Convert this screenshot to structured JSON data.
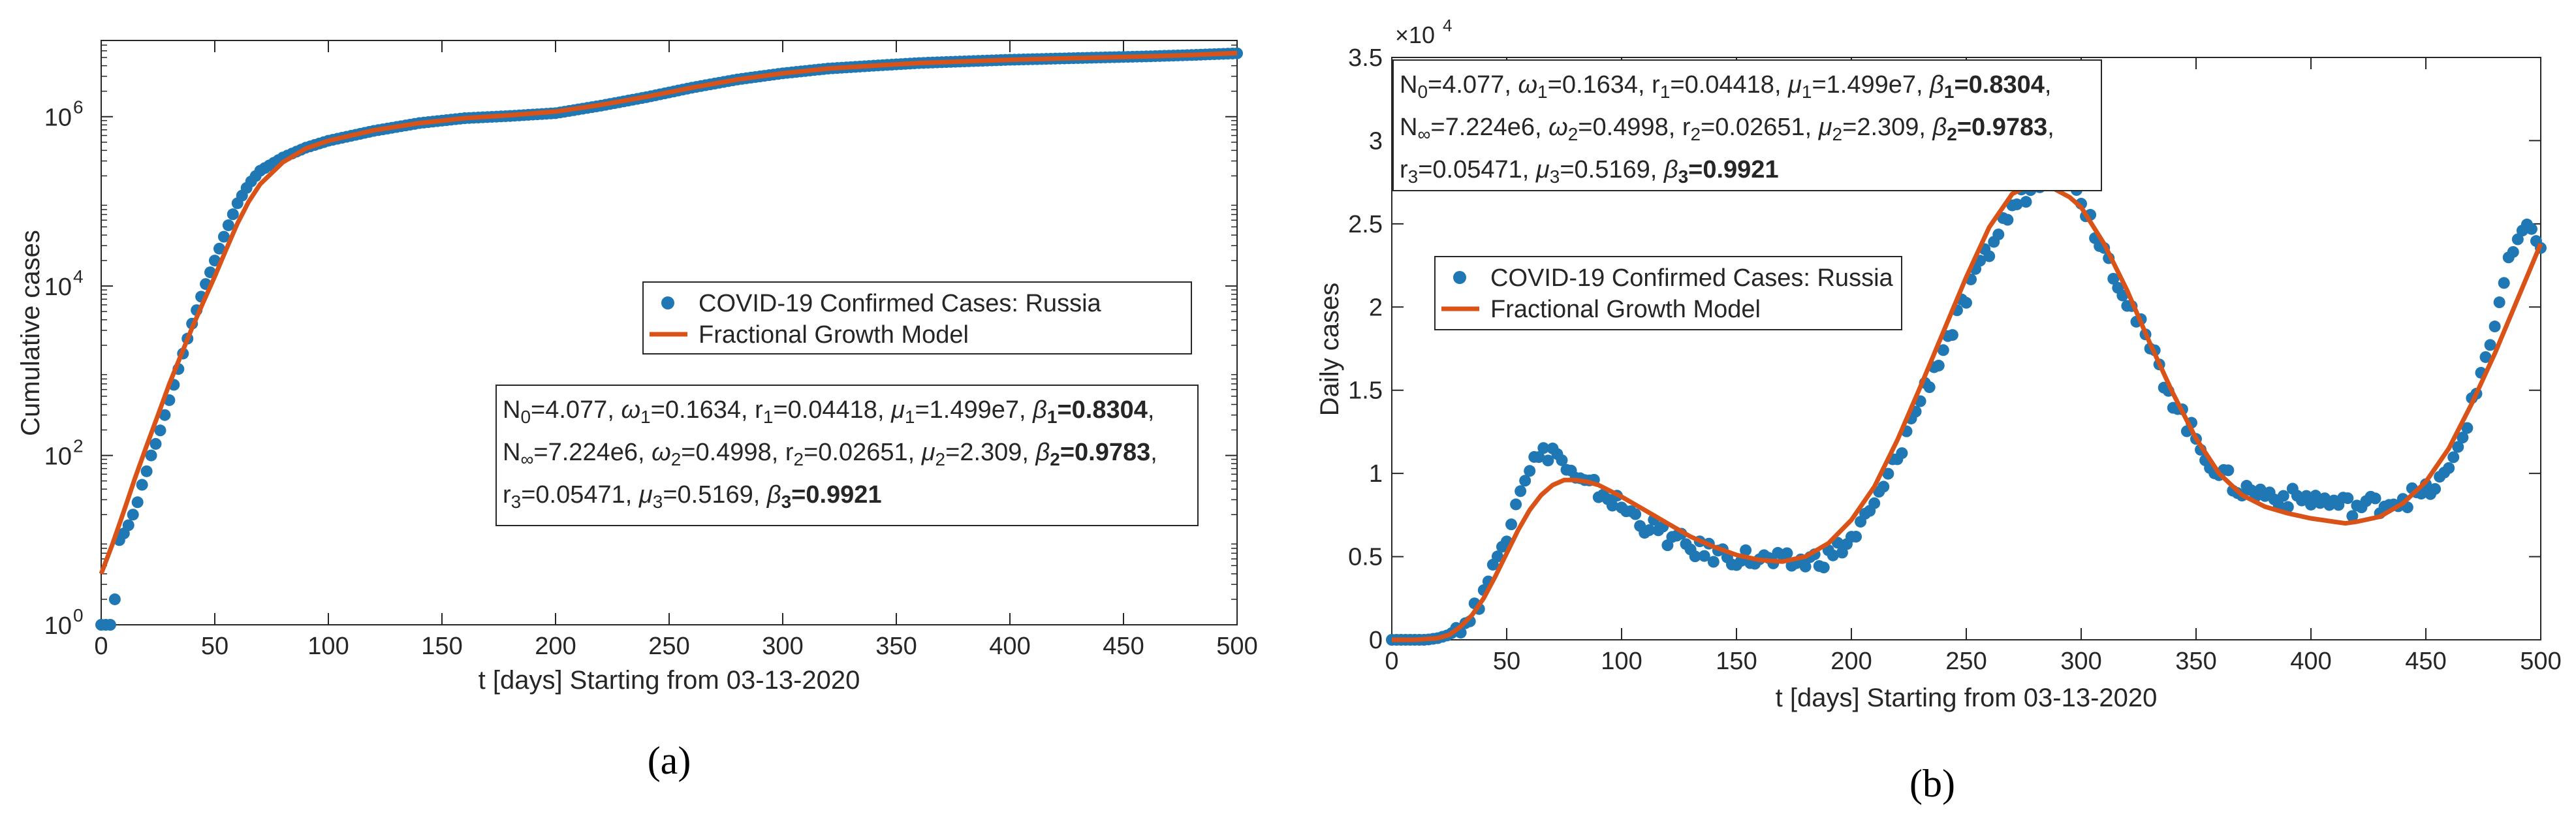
{
  "colors": {
    "data": "#1f77b4",
    "model": "#d95319",
    "axis": "#262626",
    "text": "#262626"
  },
  "chart_data": [
    {
      "id": "a",
      "panel_label": "(a)",
      "type": "scatter+line",
      "yscale": "log",
      "xlim": [
        0,
        500
      ],
      "ylim_log10": [
        0,
        6.9
      ],
      "xticks": [
        "0",
        "50",
        "100",
        "150",
        "200",
        "250",
        "300",
        "350",
        "400",
        "450",
        "500"
      ],
      "ytick_bases": [
        "10",
        "10",
        "10",
        "10"
      ],
      "ytick_exps": [
        "0",
        "2",
        "4",
        "6"
      ],
      "xlabel": "t [days] Starting from 03-13-2020",
      "ylabel": "Cumulative cases",
      "legend": {
        "position": "middle-right",
        "entries": [
          "COVID-19 Confirmed Cases: Russia",
          "Fractional Growth Model"
        ]
      },
      "series": [
        {
          "name": "COVID-19 Confirmed Cases: Russia",
          "kind": "scatter",
          "x": [
            0,
            2,
            4,
            6,
            8,
            10,
            12,
            14,
            16,
            18,
            20,
            22,
            25,
            28,
            31,
            35,
            40,
            45,
            50,
            55,
            60,
            65,
            70,
            80,
            90,
            100,
            120,
            140,
            160,
            180,
            200,
            220,
            240,
            260,
            280,
            300,
            320,
            340,
            360,
            380,
            400,
            420,
            440,
            460,
            480,
            500
          ],
          "y": [
            1,
            1,
            1,
            2,
            10,
            12,
            15,
            20,
            28,
            45,
            65,
            100,
            160,
            300,
            550,
            1300,
            3600,
            9000,
            20000,
            45000,
            95000,
            160000,
            230000,
            330000,
            430000,
            520000,
            680000,
            840000,
            960000,
            1020000,
            1100000,
            1350000,
            1700000,
            2200000,
            2750000,
            3250000,
            3700000,
            4000000,
            4300000,
            4500000,
            4700000,
            4850000,
            5000000,
            5150000,
            5350000,
            5600000
          ]
        },
        {
          "name": "Fractional Growth Model",
          "kind": "line",
          "x": [
            0,
            5,
            10,
            15,
            20,
            25,
            30,
            35,
            40,
            45,
            50,
            55,
            60,
            65,
            70,
            80,
            90,
            100,
            120,
            140,
            160,
            180,
            200,
            220,
            240,
            260,
            280,
            300,
            320,
            340,
            360,
            380,
            400,
            420,
            440,
            460,
            480,
            500
          ],
          "y": [
            4,
            9,
            22,
            55,
            130,
            300,
            700,
            1500,
            3200,
            6500,
            13000,
            27000,
            55000,
            100000,
            160000,
            290000,
            420000,
            520000,
            690000,
            840000,
            960000,
            1040000,
            1150000,
            1380000,
            1720000,
            2200000,
            2750000,
            3250000,
            3700000,
            4000000,
            4300000,
            4500000,
            4700000,
            4850000,
            5000000,
            5150000,
            5350000,
            5650000
          ]
        }
      ],
      "param_box": [
        [
          {
            "t": "N"
          },
          {
            "t": "0",
            "sub": true
          },
          {
            "t": "=4.077, "
          },
          {
            "t": "ω",
            "it": true
          },
          {
            "t": "1",
            "sub": true
          },
          {
            "t": "=0.1634, r"
          },
          {
            "t": "1",
            "sub": true
          },
          {
            "t": "=0.04418, "
          },
          {
            "t": "μ",
            "it": true
          },
          {
            "t": "1",
            "sub": true
          },
          {
            "t": "=1.499e7, "
          },
          {
            "t": "β",
            "it": true
          },
          {
            "t": "1",
            "sub": true,
            "b": true
          },
          {
            "t": "=0.8304",
            "b": true
          },
          {
            "t": ","
          }
        ],
        [
          {
            "t": "N"
          },
          {
            "t": "∞",
            "sub": true
          },
          {
            "t": "=7.224e6, "
          },
          {
            "t": "ω",
            "it": true
          },
          {
            "t": "2",
            "sub": true
          },
          {
            "t": "=0.4998, r"
          },
          {
            "t": "2",
            "sub": true
          },
          {
            "t": "=0.02651, "
          },
          {
            "t": "μ",
            "it": true
          },
          {
            "t": "2",
            "sub": true
          },
          {
            "t": "=2.309, "
          },
          {
            "t": "β",
            "it": true
          },
          {
            "t": "2",
            "sub": true,
            "b": true
          },
          {
            "t": "=0.9783",
            "b": true
          },
          {
            "t": ","
          }
        ],
        [
          {
            "t": "r"
          },
          {
            "t": "3",
            "sub": true
          },
          {
            "t": "=0.05471, "
          },
          {
            "t": "μ",
            "it": true
          },
          {
            "t": "3",
            "sub": true
          },
          {
            "t": "=0.5169, "
          },
          {
            "t": "β",
            "it": true
          },
          {
            "t": "3",
            "sub": true,
            "b": true
          },
          {
            "t": "=0.9921",
            "b": true
          }
        ]
      ]
    },
    {
      "id": "b",
      "panel_label": "(b)",
      "type": "scatter+line",
      "yscale": "linear",
      "xlim": [
        0,
        500
      ],
      "ylim": [
        0,
        3.5
      ],
      "y_multiplier_base": "×10",
      "y_multiplier_exp": "4",
      "xticks": [
        "0",
        "50",
        "100",
        "150",
        "200",
        "250",
        "300",
        "350",
        "400",
        "450",
        "500"
      ],
      "yticks": [
        "0",
        "0.5",
        "1",
        "1.5",
        "2",
        "2.5",
        "3",
        "3.5"
      ],
      "xlabel": "t [days] Starting from 03-13-2020",
      "ylabel": "Daily cases",
      "legend": {
        "position": "upper-left",
        "entries": [
          "COVID-19 Confirmed Cases: Russia",
          "Fractional Growth Model"
        ]
      },
      "series": [
        {
          "name": "COVID-19 Confirmed Cases: Russia",
          "kind": "scatter",
          "x": [
            0,
            5,
            10,
            15,
            20,
            25,
            30,
            35,
            40,
            45,
            50,
            55,
            60,
            65,
            70,
            75,
            80,
            85,
            90,
            95,
            100,
            110,
            120,
            130,
            140,
            150,
            160,
            170,
            180,
            190,
            200,
            210,
            220,
            230,
            240,
            250,
            260,
            270,
            280,
            290,
            295,
            300,
            310,
            320,
            330,
            340,
            350,
            360,
            370,
            380,
            390,
            400,
            410,
            420,
            430,
            440,
            450,
            460,
            470,
            480,
            485,
            490,
            495,
            500
          ],
          "y": [
            0,
            0,
            0,
            0,
            0.01,
            0.03,
            0.08,
            0.15,
            0.3,
            0.45,
            0.65,
            0.9,
            1.05,
            1.1,
            1.15,
            1.05,
            0.95,
            0.92,
            0.9,
            0.85,
            0.8,
            0.7,
            0.62,
            0.55,
            0.52,
            0.5,
            0.48,
            0.46,
            0.47,
            0.5,
            0.6,
            0.8,
            1.1,
            1.45,
            1.75,
            2.05,
            2.35,
            2.6,
            2.75,
            2.85,
            2.9,
            2.65,
            2.35,
            2.05,
            1.75,
            1.45,
            1.2,
            1.0,
            0.9,
            0.88,
            0.85,
            0.85,
            0.82,
            0.8,
            0.82,
            0.85,
            0.88,
            1.0,
            1.4,
            1.9,
            2.2,
            2.4,
            2.45,
            2.4
          ]
        },
        {
          "name": "Fractional Growth Model",
          "kind": "line",
          "x": [
            0,
            10,
            20,
            25,
            30,
            35,
            40,
            45,
            50,
            55,
            60,
            65,
            70,
            75,
            80,
            85,
            90,
            100,
            110,
            120,
            130,
            140,
            150,
            160,
            170,
            180,
            190,
            200,
            210,
            220,
            230,
            240,
            250,
            260,
            270,
            280,
            287,
            295,
            300,
            310,
            320,
            330,
            340,
            350,
            360,
            370,
            380,
            390,
            400,
            410,
            415,
            420,
            430,
            440,
            450,
            460,
            470,
            480,
            490,
            500
          ],
          "y": [
            0,
            0,
            0.01,
            0.03,
            0.08,
            0.15,
            0.25,
            0.38,
            0.52,
            0.66,
            0.78,
            0.87,
            0.93,
            0.96,
            0.96,
            0.95,
            0.93,
            0.86,
            0.78,
            0.7,
            0.62,
            0.56,
            0.51,
            0.48,
            0.47,
            0.5,
            0.58,
            0.72,
            0.92,
            1.2,
            1.52,
            1.85,
            2.18,
            2.48,
            2.68,
            2.75,
            2.72,
            2.66,
            2.6,
            2.38,
            2.1,
            1.78,
            1.48,
            1.21,
            1.0,
            0.87,
            0.8,
            0.76,
            0.73,
            0.71,
            0.7,
            0.71,
            0.74,
            0.82,
            0.95,
            1.15,
            1.42,
            1.72,
            2.05,
            2.38
          ]
        }
      ],
      "param_box": [
        [
          {
            "t": "N"
          },
          {
            "t": "0",
            "sub": true
          },
          {
            "t": "=4.077, "
          },
          {
            "t": "ω",
            "it": true
          },
          {
            "t": "1",
            "sub": true
          },
          {
            "t": "=0.1634, r"
          },
          {
            "t": "1",
            "sub": true
          },
          {
            "t": "=0.04418, "
          },
          {
            "t": "μ",
            "it": true
          },
          {
            "t": "1",
            "sub": true
          },
          {
            "t": "=1.499e7, "
          },
          {
            "t": "β",
            "it": true
          },
          {
            "t": "1",
            "sub": true,
            "b": true
          },
          {
            "t": "=0.8304",
            "b": true
          },
          {
            "t": ","
          }
        ],
        [
          {
            "t": "N"
          },
          {
            "t": "∞",
            "sub": true
          },
          {
            "t": "=7.224e6, "
          },
          {
            "t": "ω",
            "it": true
          },
          {
            "t": "2",
            "sub": true
          },
          {
            "t": "=0.4998, r"
          },
          {
            "t": "2",
            "sub": true
          },
          {
            "t": "=0.02651, "
          },
          {
            "t": "μ",
            "it": true
          },
          {
            "t": "2",
            "sub": true
          },
          {
            "t": "=2.309, "
          },
          {
            "t": "β",
            "it": true
          },
          {
            "t": "2",
            "sub": true,
            "b": true
          },
          {
            "t": "=0.9783",
            "b": true
          },
          {
            "t": ","
          }
        ],
        [
          {
            "t": "r"
          },
          {
            "t": "3",
            "sub": true
          },
          {
            "t": "=0.05471, "
          },
          {
            "t": "μ",
            "it": true
          },
          {
            "t": "3",
            "sub": true
          },
          {
            "t": "=0.5169, "
          },
          {
            "t": "β",
            "it": true
          },
          {
            "t": "3",
            "sub": true,
            "b": true
          },
          {
            "t": "=0.9921",
            "b": true
          }
        ]
      ]
    }
  ]
}
